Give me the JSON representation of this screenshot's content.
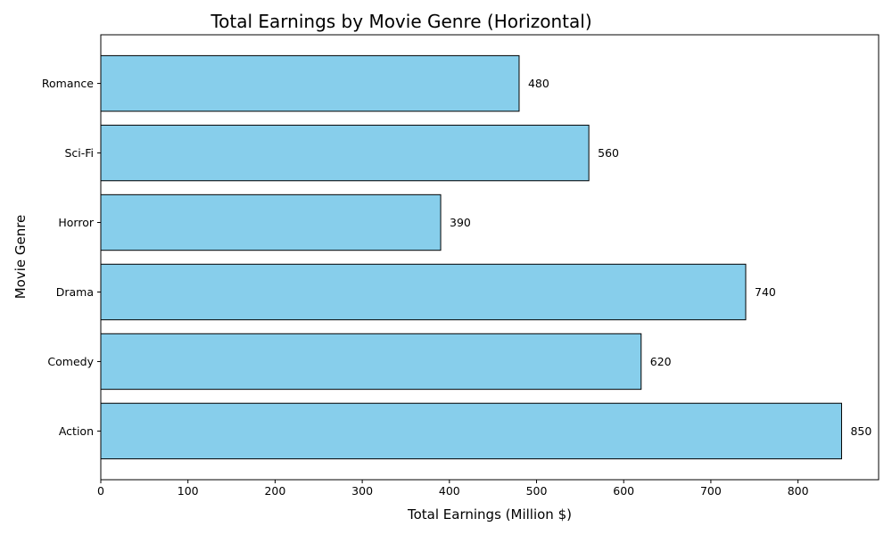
{
  "chart_data": {
    "type": "bar",
    "orientation": "horizontal",
    "title": "Total Earnings by Movie Genre (Horizontal)",
    "xlabel": "Total Earnings (Million $)",
    "ylabel": "Movie Genre",
    "categories": [
      "Action",
      "Comedy",
      "Drama",
      "Horror",
      "Sci-Fi",
      "Romance"
    ],
    "values": [
      850,
      620,
      740,
      390,
      560,
      480
    ],
    "data_labels": [
      "850",
      "620",
      "740",
      "390",
      "560",
      "480"
    ],
    "xlim": [
      0,
      892.5
    ],
    "xticks": [
      0,
      100,
      200,
      300,
      400,
      500,
      600,
      700,
      800
    ],
    "xtick_labels": [
      "0",
      "100",
      "200",
      "300",
      "400",
      "500",
      "600",
      "700",
      "800"
    ],
    "grid": false,
    "legend": "none",
    "colors": {
      "bar_fill": "#87CEEB",
      "bar_edge": "#000000"
    }
  }
}
